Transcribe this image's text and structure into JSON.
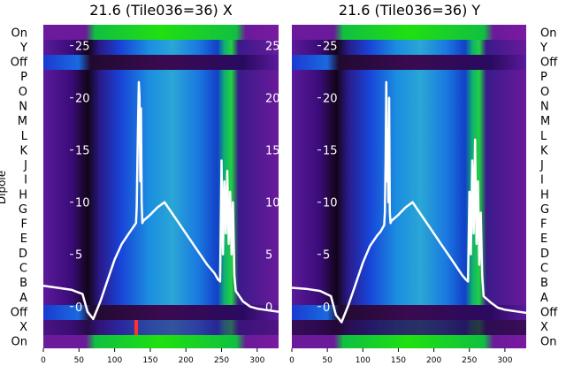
{
  "chart_data": [
    {
      "type": "heatmap",
      "title": "21.6 (Tile036=36) X",
      "ylabel": "Dipole",
      "xlabel": "",
      "xlim": [
        0,
        330
      ],
      "x_ticks": [
        0,
        50,
        100,
        150,
        200,
        250,
        300
      ],
      "overlay_ticks": [
        0,
        5,
        10,
        15,
        20,
        25
      ],
      "overlay_ylim": [
        -4,
        27
      ],
      "rows": [
        "On",
        "Y",
        "Off",
        "P",
        "O",
        "N",
        "M",
        "L",
        "K",
        "J",
        "I",
        "H",
        "G",
        "F",
        "E",
        "D",
        "C",
        "B",
        "A",
        "Off",
        "X",
        "On"
      ],
      "overlay_series": {
        "name": "",
        "x": [
          0,
          20,
          40,
          55,
          62,
          70,
          80,
          90,
          100,
          110,
          120,
          125,
          130,
          131,
          132,
          133,
          134,
          135,
          136,
          137,
          138,
          139,
          140,
          150,
          160,
          170,
          180,
          190,
          200,
          210,
          220,
          230,
          240,
          245,
          248,
          250,
          252,
          254,
          256,
          258,
          260,
          262,
          264,
          266,
          268,
          270,
          280,
          290,
          300,
          310,
          320,
          330
        ],
        "y": [
          2.0,
          1.8,
          1.6,
          1.2,
          -0.5,
          -1.2,
          0.5,
          2.5,
          4.5,
          6.0,
          7.0,
          7.5,
          8.0,
          9.5,
          14,
          18,
          21.5,
          20,
          12,
          19,
          10,
          8.0,
          8.2,
          8.8,
          9.5,
          10,
          9.0,
          8.0,
          7.0,
          6.0,
          5.0,
          4.0,
          3.2,
          2.6,
          2.4,
          14,
          5,
          12,
          7,
          13,
          6,
          11,
          5,
          10,
          3,
          1.5,
          0.5,
          0.0,
          -0.2,
          -0.3,
          -0.4,
          -0.5
        ]
      }
    },
    {
      "type": "heatmap",
      "title": "21.6 (Tile036=36) Y",
      "ylabel": "",
      "xlabel": "",
      "xlim": [
        0,
        330
      ],
      "x_ticks": [
        0,
        50,
        100,
        150,
        200,
        250,
        300
      ],
      "overlay_ticks": [
        0,
        5,
        10,
        15,
        20,
        25
      ],
      "overlay_ylim": [
        -4,
        27
      ],
      "rows": [
        "On",
        "Y",
        "Off",
        "P",
        "O",
        "N",
        "M",
        "L",
        "K",
        "J",
        "I",
        "H",
        "G",
        "F",
        "E",
        "D",
        "C",
        "B",
        "A",
        "Off",
        "X",
        "On"
      ],
      "overlay_series": {
        "name": "",
        "x": [
          0,
          20,
          40,
          55,
          62,
          70,
          80,
          90,
          100,
          110,
          120,
          125,
          130,
          131,
          132,
          133,
          134,
          135,
          136,
          137,
          138,
          139,
          140,
          150,
          160,
          170,
          180,
          190,
          200,
          210,
          220,
          230,
          240,
          245,
          248,
          250,
          252,
          254,
          256,
          258,
          260,
          262,
          264,
          266,
          268,
          270,
          280,
          290,
          300,
          310,
          320,
          330
        ],
        "y": [
          1.8,
          1.7,
          1.5,
          1.0,
          -0.8,
          -1.5,
          0.2,
          2.2,
          4.2,
          5.8,
          6.8,
          7.2,
          7.8,
          9.0,
          14,
          21.5,
          12,
          17,
          10,
          20,
          9,
          8.0,
          8.2,
          8.8,
          9.5,
          10,
          9.0,
          8.0,
          7.0,
          6.0,
          5.0,
          4.0,
          3.0,
          2.6,
          2.4,
          11,
          5,
          14,
          7,
          16,
          6,
          12,
          4,
          9,
          3,
          1.0,
          0.4,
          -0.1,
          -0.3,
          -0.4,
          -0.5,
          -0.6
        ]
      }
    }
  ]
}
